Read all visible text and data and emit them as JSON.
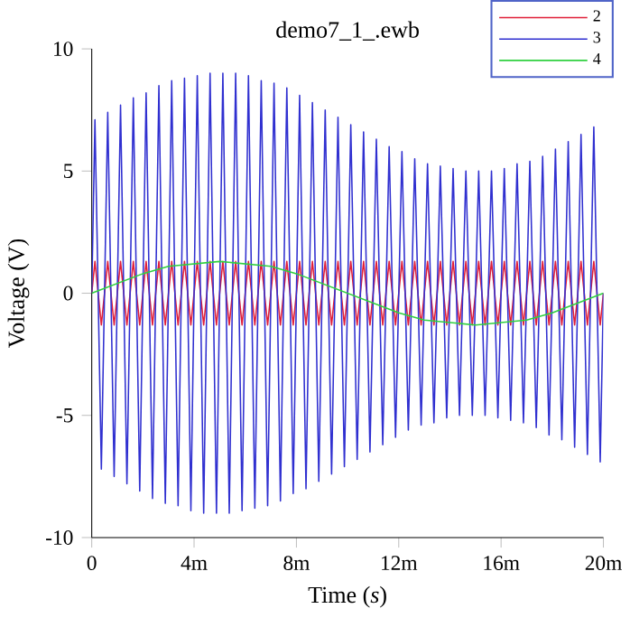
{
  "chart_data": {
    "type": "line",
    "title": "demo7_1_.ewb",
    "xlabel": "Time (*s*)",
    "ylabel": "Voltage (V)",
    "xlim": [
      0,
      20
    ],
    "ylim": [
      -10,
      10
    ],
    "xticks": [
      0,
      {
        "value": 4,
        "label": "4m"
      },
      {
        "value": 8,
        "label": "8m"
      },
      {
        "value": 12,
        "label": "12m"
      },
      {
        "value": 16,
        "label": "16m"
      },
      {
        "value": 20,
        "label": "20m"
      }
    ],
    "yticks": [
      -10,
      -5,
      0,
      5,
      10
    ],
    "legend": "top right",
    "x": [
      0,
      0.125,
      0.375,
      0.625,
      0.875,
      1.125,
      1.375,
      1.625,
      1.875,
      2.125,
      2.375,
      2.625,
      2.875,
      3.125,
      3.375,
      3.625,
      3.875,
      4.125,
      4.375,
      4.625,
      4.875,
      5.125,
      5.375,
      5.625,
      5.875,
      6.125,
      6.375,
      6.625,
      6.875,
      7.125,
      7.375,
      7.625,
      7.875,
      8.125,
      8.375,
      8.625,
      8.875,
      9.125,
      9.375,
      9.625,
      9.875,
      10.125,
      10.375,
      10.625,
      10.875,
      11.125,
      11.375,
      11.625,
      11.875,
      12.125,
      12.375,
      12.625,
      12.875,
      13.125,
      13.375,
      13.625,
      13.875,
      14.125,
      14.375,
      14.625,
      14.875,
      15.125,
      15.375,
      15.625,
      15.875,
      16.125,
      16.375,
      16.625,
      16.875,
      17.125,
      17.375,
      17.625,
      17.875,
      18.125,
      18.375,
      18.625,
      18.875,
      19.125,
      19.375,
      19.625,
      19.875,
      20
    ],
    "series": [
      {
        "name": "2",
        "color": "#e0203a",
        "values": [
          0,
          1.3,
          -1.3,
          1.3,
          -1.3,
          1.3,
          -1.3,
          1.3,
          -1.3,
          1.3,
          -1.3,
          1.3,
          -1.3,
          1.3,
          -1.3,
          1.3,
          -1.3,
          1.3,
          -1.3,
          1.3,
          -1.3,
          1.3,
          -1.3,
          1.3,
          -1.3,
          1.3,
          -1.3,
          1.3,
          -1.3,
          1.3,
          -1.3,
          1.3,
          -1.3,
          1.3,
          -1.3,
          1.3,
          -1.3,
          1.3,
          -1.3,
          1.3,
          -1.3,
          1.3,
          -1.3,
          1.3,
          -1.3,
          1.3,
          -1.3,
          1.3,
          -1.3,
          1.3,
          -1.3,
          1.3,
          -1.3,
          1.3,
          -1.3,
          1.3,
          -1.3,
          1.3,
          -1.3,
          1.3,
          -1.3,
          1.3,
          -1.3,
          1.3,
          -1.3,
          1.3,
          -1.3,
          1.3,
          -1.3,
          1.3,
          -1.3,
          1.3,
          -1.3,
          1.3,
          -1.3,
          1.3,
          -1.3,
          1.3,
          -1.3,
          1.3,
          -1.3,
          0
        ]
      },
      {
        "name": "3",
        "color": "#3030d0",
        "values": [
          0,
          7.1,
          -7.2,
          7.4,
          -7.5,
          7.7,
          -7.8,
          8.0,
          -8.1,
          8.2,
          -8.4,
          8.5,
          -8.6,
          8.7,
          -8.7,
          8.8,
          -8.9,
          8.9,
          -9.0,
          9.0,
          -9.0,
          9.0,
          -9.0,
          9.0,
          -8.9,
          8.9,
          -8.8,
          8.7,
          -8.7,
          8.6,
          -8.5,
          8.4,
          -8.2,
          8.1,
          -8.0,
          7.8,
          -7.7,
          7.5,
          -7.4,
          7.2,
          -7.1,
          6.9,
          -6.8,
          6.6,
          -6.5,
          6.3,
          -6.2,
          6.0,
          -5.9,
          5.8,
          -5.6,
          5.5,
          -5.4,
          5.3,
          -5.3,
          5.2,
          -5.1,
          5.1,
          -5.0,
          5.0,
          -5.0,
          5.0,
          -5.0,
          5.0,
          -5.1,
          5.1,
          -5.2,
          5.3,
          -5.3,
          5.4,
          -5.5,
          5.6,
          -5.8,
          5.9,
          -6.0,
          6.2,
          -6.3,
          6.5,
          -6.6,
          6.8,
          -6.9,
          0
        ]
      },
      {
        "name": "4",
        "color": "#30d040",
        "x": [
          0,
          1,
          2,
          3,
          4,
          5,
          6,
          7,
          8,
          9,
          10,
          11,
          12,
          13,
          14,
          15,
          16,
          17,
          18,
          19,
          20
        ],
        "values": [
          0,
          0.4,
          0.8,
          1.1,
          1.2,
          1.3,
          1.2,
          1.1,
          0.8,
          0.4,
          0,
          -0.4,
          -0.8,
          -1.1,
          -1.2,
          -1.3,
          -1.2,
          -1.1,
          -0.8,
          -0.4,
          0
        ]
      }
    ]
  }
}
